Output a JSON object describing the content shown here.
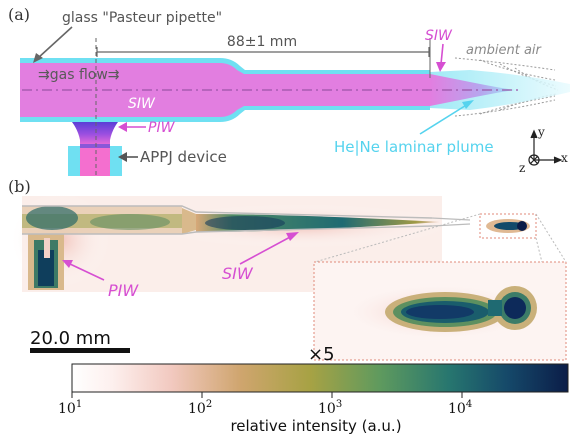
{
  "panel_a": {
    "label": "(a)",
    "glass_label": "glass \"Pasteur pipette\"",
    "distance_label": "88±1 mm",
    "gas_flow_label": "⇉gas flow⇉",
    "siw_inner_label": "SIW",
    "siw_tip_label": "SIW",
    "piw_label": "PIW",
    "device_label": "APPJ device",
    "ambient_label": "ambient air",
    "plume_label": "He|Ne laminar plume",
    "axes": {
      "y": "y",
      "x": "x",
      "z": "z"
    }
  },
  "panel_b": {
    "label": "(b)",
    "siw_label": "SIW",
    "piw_label": "PIW",
    "scale_bar": "20.0 mm",
    "zoom_label": "×5"
  },
  "colorbar": {
    "label": "relative intensity (a.u.)",
    "ticks": [
      {
        "base": "10",
        "exp": "1"
      },
      {
        "base": "10",
        "exp": "2"
      },
      {
        "base": "10",
        "exp": "3"
      },
      {
        "base": "10",
        "exp": "4"
      }
    ],
    "colors": [
      "#ffffff",
      "#f7d9d2",
      "#d8a878",
      "#b4a040",
      "#6f9a58",
      "#2f7a70",
      "#134a6a",
      "#0a1f4a"
    ]
  },
  "colors": {
    "magenta": "#e27ee0",
    "cyan": "#6fe0f2",
    "violet": "#7a3fd0",
    "label_magenta": "#d64fd2",
    "label_cyan": "#55d3ee",
    "gray": "#6b6b6b"
  }
}
